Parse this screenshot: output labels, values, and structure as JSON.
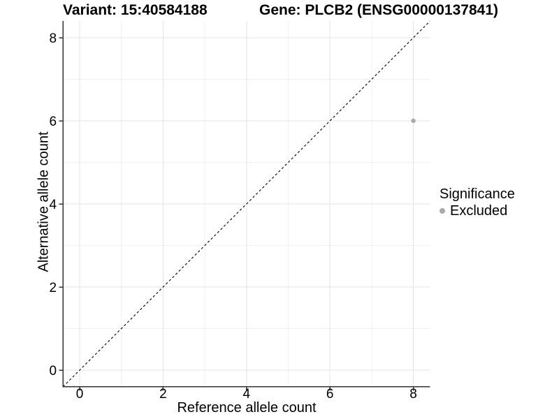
{
  "header": {
    "variant_title": "Variant: 15:40584188",
    "gene_title": "Gene: PLCB2 (ENSG00000137841)"
  },
  "chart_data": {
    "type": "scatter",
    "title": "Variant: 15:40584188",
    "subtitle": "Gene: PLCB2 (ENSG00000137841)",
    "xlabel": "Reference allele count",
    "ylabel": "Alternative allele count",
    "xlim": [
      -0.4,
      8.4
    ],
    "ylim": [
      -0.4,
      8.4
    ],
    "x_ticks": [
      0,
      2,
      4,
      6,
      8
    ],
    "y_ticks": [
      0,
      2,
      4,
      6,
      8
    ],
    "x_minor_gridlines": [
      1,
      3,
      5,
      7
    ],
    "y_minor_gridlines": [
      1,
      3,
      5,
      7
    ],
    "grid": "major-and-minor",
    "points": [
      {
        "x": 8,
        "y": 6,
        "series": "Excluded"
      }
    ],
    "reference_line": {
      "type": "identity",
      "style": "dashed",
      "x1": -0.4,
      "y1": -0.4,
      "x2": 8.4,
      "y2": 8.4
    },
    "legend": {
      "title": "Significance",
      "position": "right",
      "items": [
        {
          "label": "Excluded",
          "color": "#a9a9a9"
        }
      ]
    }
  },
  "colors": {
    "background": "#ffffff",
    "grid_major": "#e3e3e3",
    "grid_minor": "#f0f0f0",
    "axis_line": "#333333",
    "tick_text": "#000000",
    "reference_line": "#000000",
    "point": "#a9a9a9"
  }
}
